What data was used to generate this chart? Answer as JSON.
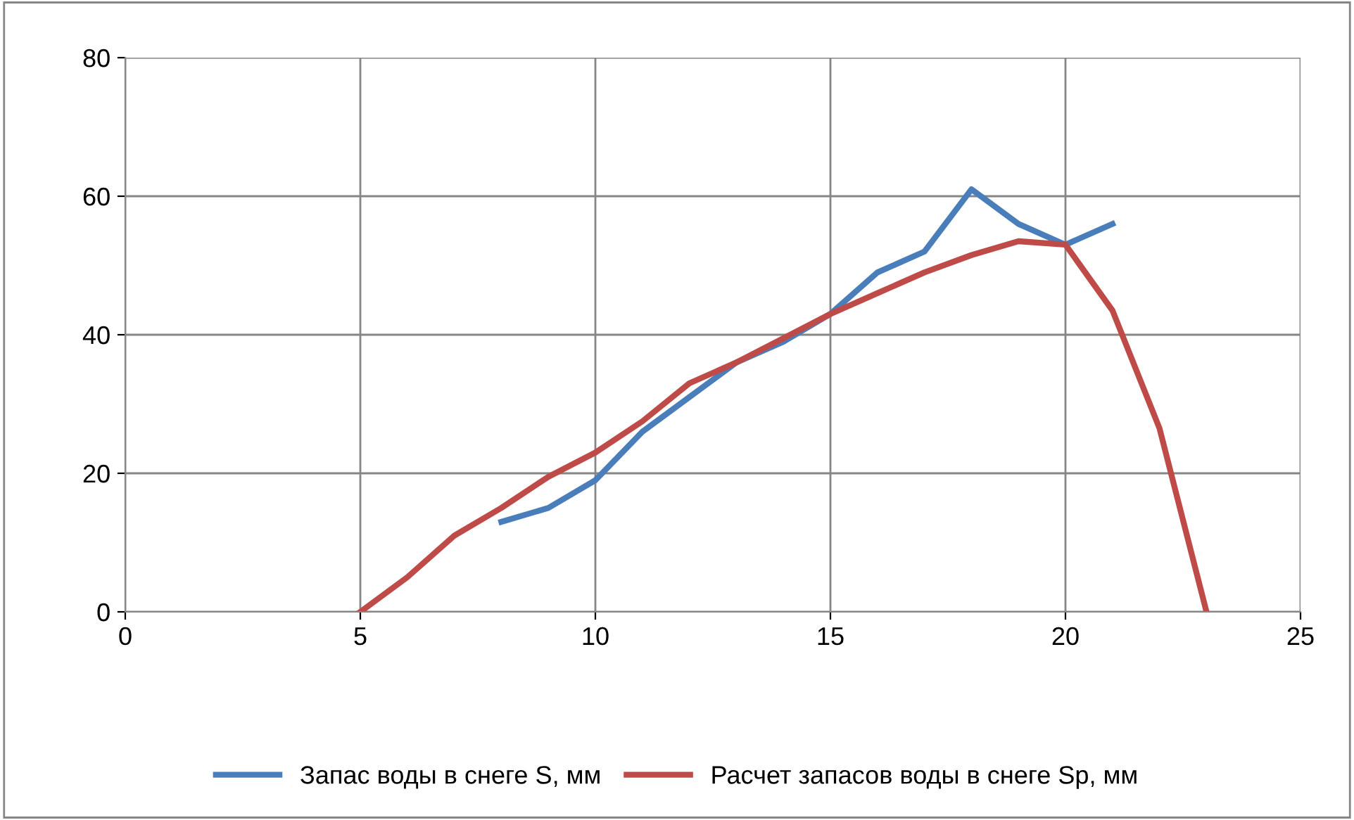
{
  "chart_data": {
    "type": "line",
    "series": [
      {
        "name": "Запас воды в снеге S, мм",
        "color": "#4a7ebb",
        "x": [
          8,
          9,
          10,
          11,
          12,
          13,
          14,
          15,
          16,
          17,
          18,
          19,
          20,
          21
        ],
        "values": [
          13,
          15,
          19,
          26,
          31,
          36,
          39,
          43,
          49,
          52,
          61,
          56,
          53,
          56
        ]
      },
      {
        "name": "Расчет запасов воды в снеге Sp, мм",
        "color": "#be4b48",
        "x": [
          5,
          6,
          7,
          8,
          9,
          10,
          11,
          12,
          13,
          14,
          15,
          16,
          17,
          18,
          19,
          20,
          21,
          22,
          23
        ],
        "values": [
          0,
          5,
          11,
          15,
          19.5,
          23,
          27.5,
          33,
          36,
          39.5,
          43,
          46,
          49,
          51.5,
          53.5,
          53,
          43.5,
          26.5,
          0
        ]
      }
    ],
    "xlim": [
      0,
      25
    ],
    "xticks": [
      0,
      5,
      10,
      15,
      20,
      25
    ],
    "ylim": [
      0,
      80
    ],
    "yticks": [
      0,
      20,
      40,
      60,
      80
    ],
    "grid": true,
    "legend": "bottom",
    "marker": "none",
    "line_style": "solid"
  }
}
